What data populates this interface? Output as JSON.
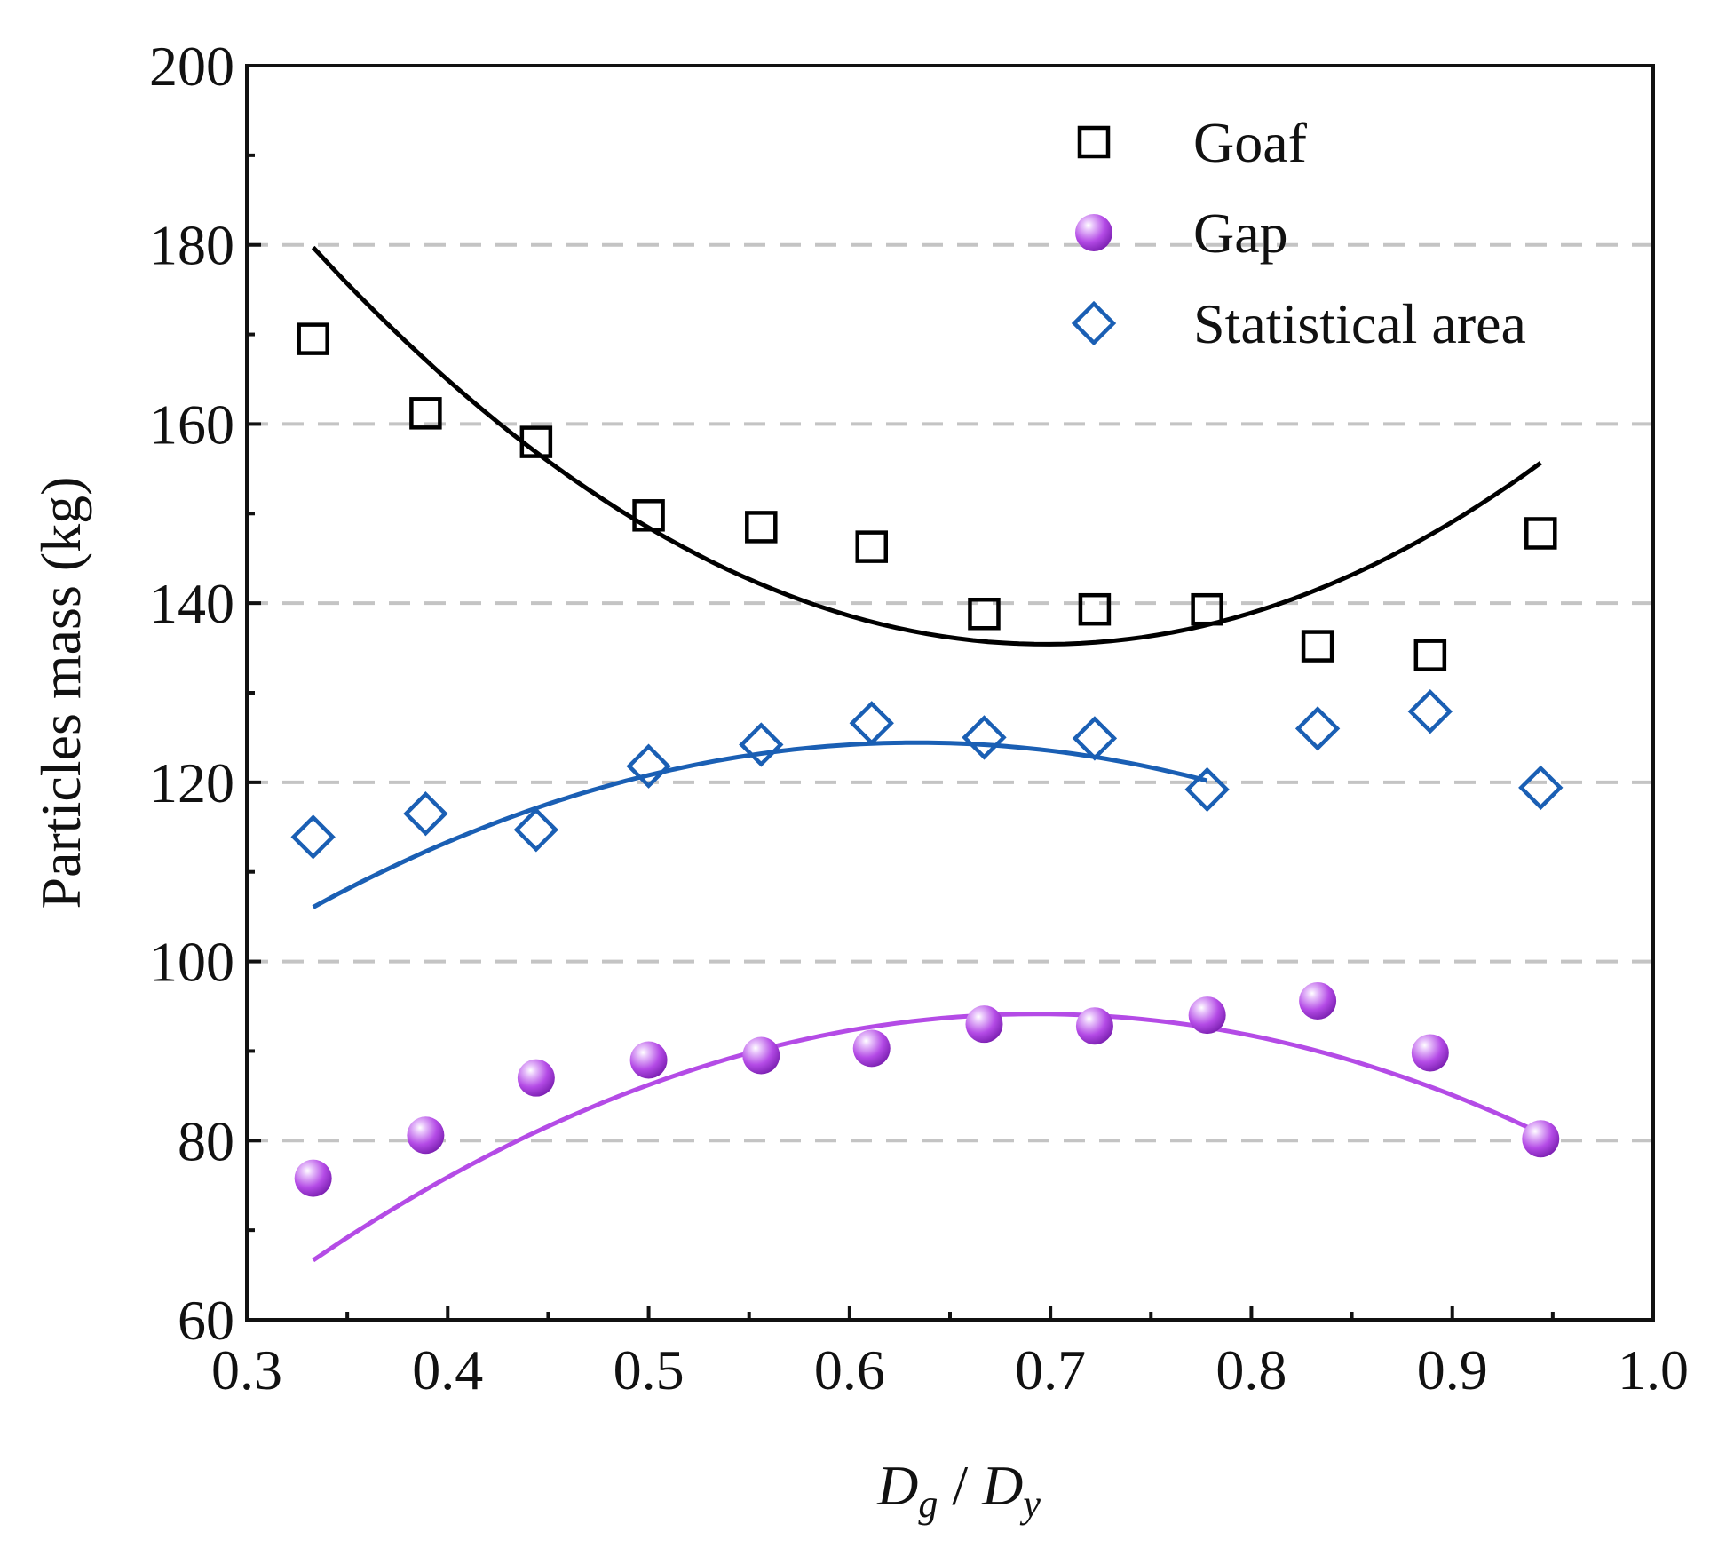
{
  "chart_data": {
    "type": "scatter",
    "xlabel": "Dg / Dy",
    "xlabel_parts": {
      "main1": "D",
      "sub1": "g",
      "sep": " / ",
      "main2": "D",
      "sub2": "y"
    },
    "ylabel": "Particles mass (kg)",
    "xlim": [
      0.3,
      1.0
    ],
    "ylim": [
      60,
      200
    ],
    "xticks": [
      "0.3",
      "0.4",
      "0.5",
      "0.6",
      "0.7",
      "0.8",
      "0.9",
      "1.0"
    ],
    "yticks": [
      "60",
      "80",
      "100",
      "120",
      "140",
      "160",
      "180",
      "200"
    ],
    "grid": "horizontal dashed",
    "legend_position": "top-right",
    "series": [
      {
        "name": "Goaf",
        "marker": "open-square",
        "color": "#000000",
        "x": [
          0.333,
          0.389,
          0.444,
          0.5,
          0.556,
          0.611,
          0.667,
          0.722,
          0.778,
          0.833,
          0.889,
          0.944
        ],
        "y": [
          169.5,
          161.2,
          158.0,
          149.8,
          148.5,
          146.3,
          138.8,
          139.3,
          139.3,
          135.2,
          134.2,
          147.8
        ],
        "fit": {
          "type": "polynomial",
          "x_range": [
            0.333,
            0.944
          ],
          "coeffs": [
            297.6,
            -465.0,
            333.3
          ]
        }
      },
      {
        "name": "Gap",
        "marker": "filled-sphere",
        "color": "#b44be6",
        "x": [
          0.333,
          0.389,
          0.444,
          0.5,
          0.556,
          0.611,
          0.667,
          0.722,
          0.778,
          0.833,
          0.889,
          0.944
        ],
        "y": [
          75.8,
          80.6,
          87.0,
          89.0,
          89.5,
          90.3,
          93.0,
          92.8,
          94.0,
          95.6,
          89.8,
          80.2
        ],
        "fit": {
          "type": "polynomial",
          "x_range": [
            0.333,
            0.944
          ],
          "coeffs": [
            -7.7,
            293.8,
            -211.9
          ]
        }
      },
      {
        "name": "Statistical area",
        "marker": "open-diamond",
        "color": "#1a5fb4",
        "x": [
          0.333,
          0.389,
          0.444,
          0.5,
          0.556,
          0.611,
          0.667,
          0.722,
          0.778,
          0.833,
          0.889,
          0.944
        ],
        "y": [
          113.9,
          116.5,
          114.7,
          121.8,
          124.2,
          126.6,
          125.0,
          124.9,
          119.2,
          126.0,
          127.9,
          119.4
        ],
        "fit": {
          "type": "polynomial",
          "x_range": [
            0.333,
            0.778
          ],
          "coeffs": [
            42.8,
            257.7,
            -203.4
          ]
        }
      }
    ]
  }
}
